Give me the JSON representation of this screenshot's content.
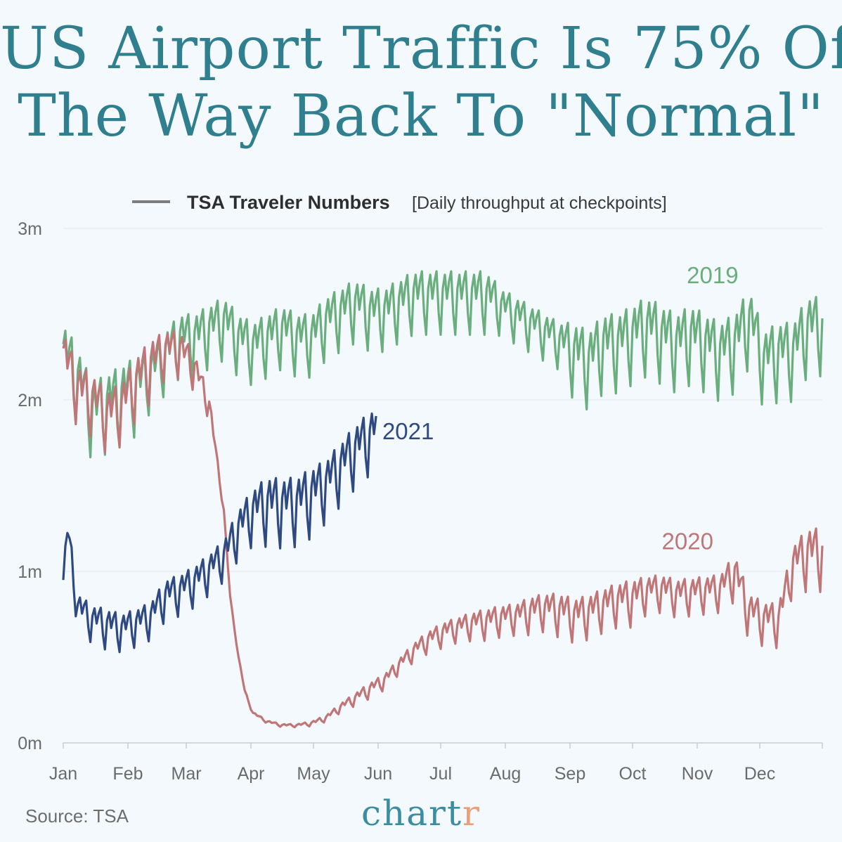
{
  "title_line1": "US Airport Traffic Is 75% Of",
  "title_line2": "The Way Back To \"Normal\"",
  "source": "Source: TSA",
  "brand": {
    "text_main": "chart",
    "text_accent": "r",
    "color_main": "#3a8ea0",
    "color_accent": "#e8a07a"
  },
  "chart_data": {
    "type": "line",
    "legend_label": "TSA Traveler Numbers",
    "legend_note": "[Daily throughput at checkpoints]",
    "legend_placement": "top-center",
    "xlabel": "",
    "ylabel": "",
    "x_ticks": [
      "Jan",
      "Feb",
      "Mar",
      "Apr",
      "May",
      "Jun",
      "Jul",
      "Aug",
      "Sep",
      "Oct",
      "Nov",
      "Dec"
    ],
    "x_unit": "day of year",
    "xlim": [
      1,
      365
    ],
    "y_ticks": [
      "0m",
      "1m",
      "2m",
      "3m"
    ],
    "y_tick_values": [
      0,
      1,
      2,
      3
    ],
    "ylim": [
      0,
      3
    ],
    "y_unit": "millions of travelers",
    "grid": true,
    "series": [
      {
        "name": "2019",
        "color": "#6aae7e",
        "x": [
          1,
          8,
          15,
          22,
          29,
          36,
          43,
          50,
          57,
          64,
          71,
          78,
          85,
          92,
          99,
          106,
          113,
          120,
          127,
          134,
          141,
          148,
          155,
          162,
          169,
          176,
          183,
          190,
          197,
          204,
          211,
          218,
          225,
          232,
          239,
          246,
          253,
          260,
          267,
          274,
          281,
          288,
          295,
          302,
          309,
          316,
          323,
          330,
          337,
          344,
          351,
          358,
          365
        ],
        "y": [
          2.2,
          2.05,
          1.85,
          1.9,
          1.95,
          2.0,
          2.1,
          2.2,
          2.3,
          2.3,
          2.35,
          2.4,
          2.3,
          2.25,
          2.3,
          2.35,
          2.3,
          2.3,
          2.4,
          2.45,
          2.5,
          2.45,
          2.45,
          2.5,
          2.55,
          2.55,
          2.55,
          2.55,
          2.55,
          2.55,
          2.5,
          2.45,
          2.4,
          2.35,
          2.3,
          2.2,
          2.15,
          2.25,
          2.25,
          2.3,
          2.35,
          2.3,
          2.25,
          2.3,
          2.25,
          2.2,
          2.25,
          2.4,
          2.15,
          2.2,
          2.2,
          2.35,
          2.35
        ],
        "amplitude": [
          0.25,
          0.25,
          0.25,
          0.25,
          0.25,
          0.25,
          0.2,
          0.2,
          0.2,
          0.2,
          0.2,
          0.2,
          0.2,
          0.2,
          0.2,
          0.2,
          0.2,
          0.2,
          0.2,
          0.2,
          0.2,
          0.2,
          0.2,
          0.2,
          0.2,
          0.2,
          0.2,
          0.2,
          0.2,
          0.2,
          0.15,
          0.15,
          0.15,
          0.15,
          0.15,
          0.25,
          0.25,
          0.25,
          0.25,
          0.25,
          0.25,
          0.25,
          0.25,
          0.25,
          0.25,
          0.25,
          0.25,
          0.25,
          0.25,
          0.25,
          0.25,
          0.25,
          0.25
        ],
        "label_at": [
          300,
          2.68
        ]
      },
      {
        "name": "2020",
        "color": "#c07677",
        "x": [
          1,
          8,
          15,
          22,
          29,
          36,
          43,
          50,
          57,
          64,
          71,
          74,
          78,
          81,
          85,
          88,
          92,
          99,
          106,
          113,
          120,
          127,
          134,
          141,
          148,
          155,
          162,
          169,
          176,
          183,
          190,
          197,
          204,
          211,
          218,
          225,
          232,
          239,
          246,
          253,
          260,
          267,
          274,
          281,
          288,
          295,
          302,
          309,
          316,
          323,
          330,
          337,
          344,
          351,
          358,
          365
        ],
        "y": [
          2.2,
          2.0,
          1.95,
          1.85,
          1.9,
          2.05,
          2.15,
          2.25,
          2.25,
          2.15,
          1.95,
          1.7,
          1.35,
          0.85,
          0.5,
          0.3,
          0.17,
          0.12,
          0.1,
          0.1,
          0.11,
          0.14,
          0.2,
          0.25,
          0.3,
          0.35,
          0.44,
          0.52,
          0.58,
          0.62,
          0.65,
          0.67,
          0.68,
          0.7,
          0.71,
          0.73,
          0.75,
          0.73,
          0.7,
          0.72,
          0.76,
          0.79,
          0.8,
          0.85,
          0.86,
          0.83,
          0.84,
          0.85,
          0.86,
          0.95,
          0.72,
          0.68,
          0.67,
          1.0,
          1.05,
          1.05
        ],
        "amplitude": [
          0.2,
          0.2,
          0.2,
          0.2,
          0.2,
          0.2,
          0.2,
          0.15,
          0.15,
          0.12,
          0.08,
          0.04,
          0.02,
          0.01,
          0.01,
          0.01,
          0.01,
          0.01,
          0.01,
          0.01,
          0.015,
          0.02,
          0.03,
          0.04,
          0.05,
          0.05,
          0.05,
          0.06,
          0.07,
          0.08,
          0.08,
          0.09,
          0.1,
          0.1,
          0.1,
          0.12,
          0.12,
          0.14,
          0.14,
          0.14,
          0.14,
          0.14,
          0.15,
          0.12,
          0.12,
          0.12,
          0.12,
          0.12,
          0.12,
          0.15,
          0.15,
          0.14,
          0.14,
          0.15,
          0.2,
          0.2
        ],
        "label_at": [
          288,
          1.13
        ]
      },
      {
        "name": "2021",
        "color": "#2f4a82",
        "x": [
          1,
          3,
          8,
          15,
          22,
          29,
          36,
          43,
          50,
          57,
          64,
          71,
          78,
          85,
          92,
          99,
          106,
          113,
          120,
          127,
          134,
          141,
          148,
          151
        ],
        "y": [
          0.9,
          1.2,
          0.75,
          0.68,
          0.65,
          0.63,
          0.66,
          0.7,
          0.82,
          0.85,
          0.9,
          0.97,
          1.05,
          1.2,
          1.3,
          1.33,
          1.32,
          1.33,
          1.38,
          1.45,
          1.55,
          1.65,
          1.73,
          1.78
        ],
        "amplitude": [
          0.1,
          0.12,
          0.12,
          0.12,
          0.13,
          0.12,
          0.12,
          0.12,
          0.13,
          0.13,
          0.13,
          0.13,
          0.13,
          0.16,
          0.18,
          0.22,
          0.22,
          0.22,
          0.22,
          0.2,
          0.2,
          0.2,
          0.2,
          0.18
        ],
        "label_at": [
          154,
          1.77
        ]
      }
    ]
  }
}
